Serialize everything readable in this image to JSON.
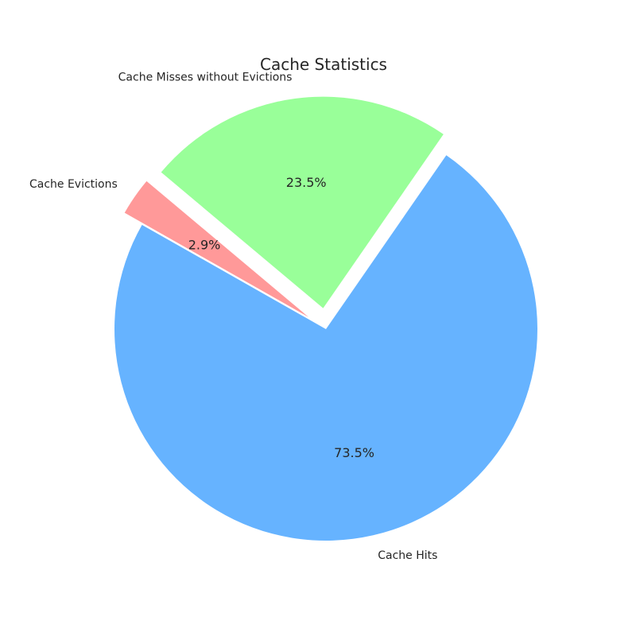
{
  "chart_data": {
    "type": "pie",
    "title": "Cache Statistics",
    "start_angle_deg": 140,
    "direction": "counterclockwise",
    "explode": [
      0.1,
      0,
      0.1
    ],
    "slices": [
      {
        "label": "Cache Evictions",
        "value": 2.9,
        "percent_label": "2.9%",
        "color": "#ff9999"
      },
      {
        "label": "Cache Hits",
        "value": 73.5,
        "percent_label": "73.5%",
        "color": "#66b3ff"
      },
      {
        "label": "Cache Misses without Evictions",
        "value": 23.5,
        "percent_label": "23.5%",
        "color": "#99ff99"
      }
    ]
  }
}
